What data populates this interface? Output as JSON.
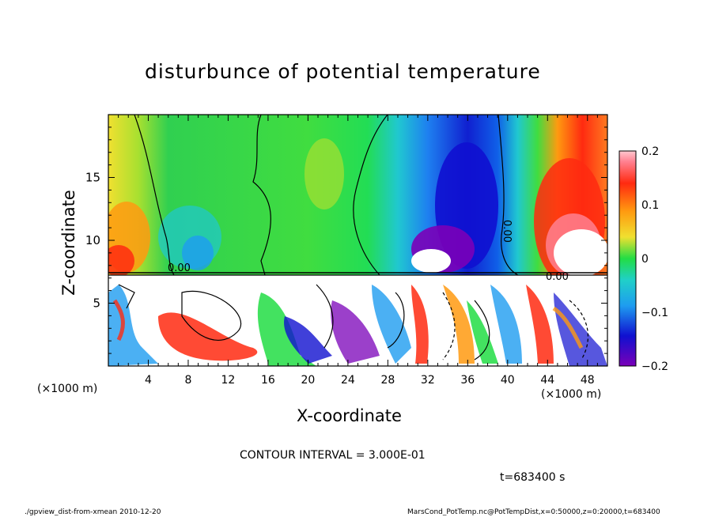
{
  "chart_data": {
    "type": "heatmap",
    "title": "disturbunce of potential temperature",
    "xlabel": "X-coordinate",
    "ylabel": "Z-coordinate",
    "x_unit": "(×1000 m)",
    "y_unit": "(×1000 m)",
    "xlim": [
      0,
      50
    ],
    "ylim": [
      0,
      20
    ],
    "x_ticks": [
      4,
      8,
      12,
      16,
      20,
      24,
      28,
      32,
      36,
      40,
      44,
      48
    ],
    "y_ticks": [
      5,
      10,
      15
    ],
    "colorbar": {
      "min": -0.2,
      "max": 0.2,
      "tick_labels": [
        "0.2",
        "0.1",
        "0",
        "−0.1",
        "−0.2"
      ],
      "tick_values": [
        0.2,
        0.1,
        0,
        -0.1,
        -0.2
      ]
    },
    "contour_interval_text": "CONTOUR INTERVAL = 3.000E-01",
    "contour_labels": [
      "0.00",
      "0.00",
      "0.00"
    ],
    "time_label": "t=683400 s",
    "footer_left": "./gpview_dist-from-xmean  2010-12-20",
    "footer_right": "MarsCond_PotTemp.nc@PotTempDist,x=0:50000,z=0:20000,t=683400",
    "colors": {
      "neg_extreme": "#7a00b8",
      "neg_strong": "#1010d0",
      "neg": "#1e9cf0",
      "zero": "#22dd44",
      "pos": "#f0e030",
      "pos_strong": "#ff2a10",
      "pos_extreme": "#ffb0c0"
    }
  }
}
